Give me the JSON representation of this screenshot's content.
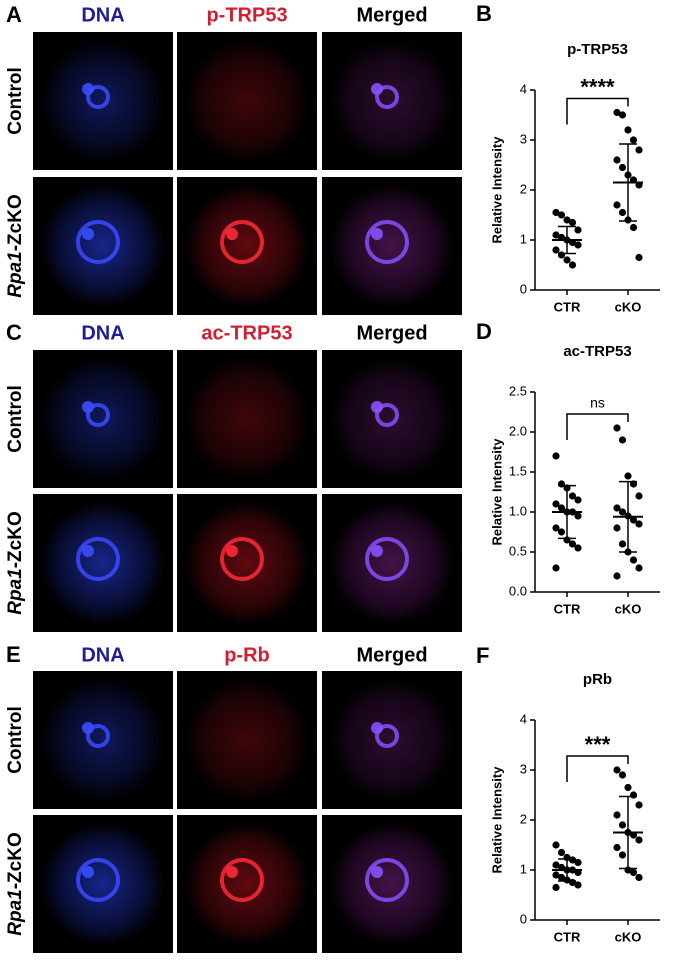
{
  "figure_panels": [
    {
      "letter": "A",
      "columns": [
        "DNA",
        "p-TRP53",
        "Merged"
      ],
      "rows": [
        {
          "label": "Control"
        },
        {
          "label_italic": "Rpa1",
          "label": "-ZcKO"
        }
      ]
    },
    {
      "letter": "C",
      "columns": [
        "DNA",
        "ac-TRP53",
        "Merged"
      ],
      "rows": [
        {
          "label": "Control"
        },
        {
          "label_italic": "Rpa1",
          "label": "-ZcKO"
        }
      ]
    },
    {
      "letter": "E",
      "columns": [
        "DNA",
        "p-Rb",
        "Merged"
      ],
      "rows": [
        {
          "label": "Control"
        },
        {
          "label_italic": "Rpa1",
          "label": "-ZcKO"
        }
      ]
    }
  ],
  "chart_data": [
    {
      "type": "dotplot",
      "panel": "B",
      "title": "p-TRP53",
      "y_label": "Relative Intensity",
      "categories": [
        "CTR",
        "cKO"
      ],
      "groups": [
        {
          "color": "#000000",
          "values": [
            1.55,
            1.5,
            1.4,
            1.35,
            1.2,
            1.1,
            1.05,
            1.0,
            0.95,
            0.9,
            0.8,
            0.7,
            0.6,
            0.5
          ],
          "mean": 1.0,
          "sd": 0.27
        },
        {
          "color": "#000000",
          "values": [
            3.55,
            3.5,
            3.2,
            3.0,
            2.8,
            2.6,
            2.45,
            2.3,
            2.2,
            2.1,
            1.7,
            1.55,
            1.4,
            1.25,
            0.65
          ],
          "mean": 2.15,
          "sd": 0.77
        }
      ],
      "significance": "****",
      "ylim": [
        0,
        4
      ],
      "yticks": [
        0,
        1,
        2,
        3,
        4
      ]
    },
    {
      "type": "dotplot",
      "panel": "D",
      "title": "ac-TRP53",
      "y_label": "Relative Intensity",
      "categories": [
        "CTR",
        "cKO"
      ],
      "groups": [
        {
          "color": "#000000",
          "values": [
            1.7,
            1.35,
            1.3,
            1.2,
            1.15,
            1.1,
            1.05,
            1.0,
            1.0,
            0.95,
            0.8,
            0.75,
            0.65,
            0.6,
            0.55,
            0.3
          ],
          "mean": 1.0,
          "sd": 0.33
        },
        {
          "color": "#000000",
          "values": [
            2.05,
            1.9,
            1.45,
            1.35,
            1.2,
            1.05,
            1.0,
            0.95,
            0.9,
            0.85,
            0.8,
            0.6,
            0.5,
            0.4,
            0.3,
            0.2
          ],
          "mean": 0.94,
          "sd": 0.44
        }
      ],
      "significance": "ns",
      "ylim": [
        0,
        2.5
      ],
      "yticks": [
        {
          "value": 0,
          "label": "0.0"
        },
        0.5,
        {
          "value": 1,
          "label": "1.0"
        },
        1.5,
        {
          "value": 2,
          "label": "2.0"
        },
        2.5
      ]
    },
    {
      "type": "dotplot",
      "panel": "F",
      "title": "pRb",
      "y_label": "Relative Intensity",
      "categories": [
        "CTR",
        "cKO"
      ],
      "groups": [
        {
          "color": "#000000",
          "values": [
            1.5,
            1.35,
            1.25,
            1.2,
            1.15,
            1.1,
            1.05,
            1.0,
            1.0,
            0.95,
            0.9,
            0.85,
            0.8,
            0.75,
            0.7,
            0.65
          ],
          "mean": 1.0,
          "sd": 0.22
        },
        {
          "color": "#000000",
          "values": [
            3.0,
            2.9,
            2.65,
            2.5,
            2.3,
            2.1,
            1.9,
            1.75,
            1.7,
            1.6,
            1.45,
            1.3,
            1.0,
            0.95,
            0.85
          ],
          "mean": 1.75,
          "sd": 0.72
        }
      ],
      "significance": "***",
      "ylim": [
        0,
        4
      ],
      "yticks": [
        0,
        1,
        2,
        3,
        4
      ]
    }
  ]
}
